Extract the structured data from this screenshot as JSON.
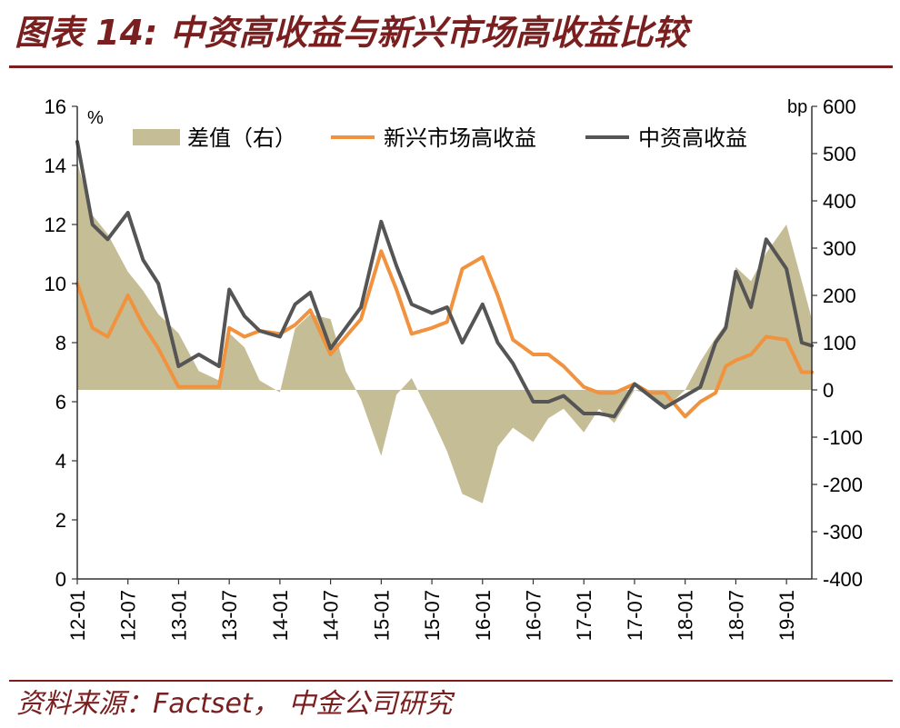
{
  "header": {
    "title": "图表 14:  中资高收益与新兴市场高收益比较"
  },
  "footer": {
    "source": "资料来源：Factset，  中金公司研究"
  },
  "colors": {
    "diff": "#c5bd96",
    "em": "#f0923e",
    "china": "#555555",
    "accent": "#7a1f1f"
  },
  "chart_data": {
    "type": "line",
    "x": [
      "12-01",
      "12-07",
      "13-01",
      "13-07",
      "14-01",
      "14-07",
      "15-01",
      "15-07",
      "16-01",
      "16-07",
      "17-01",
      "17-07",
      "18-01",
      "18-07",
      "19-01"
    ],
    "y_left": {
      "unit": "%",
      "ticks": [
        0,
        2,
        4,
        6,
        8,
        10,
        12,
        14,
        16
      ],
      "ylim": [
        0,
        16
      ]
    },
    "y_right": {
      "unit": "bp",
      "ticks": [
        -400,
        -300,
        -200,
        -100,
        0,
        100,
        200,
        300,
        400,
        500,
        600
      ],
      "ylim": [
        -400,
        600
      ]
    },
    "legend": [
      "差值（右）",
      "新兴市场高收益",
      "中资高收益"
    ],
    "legend_position": "top",
    "series": [
      {
        "name": "差值（右）",
        "type": "area",
        "axis": "right",
        "x": [
          0,
          0.3,
          0.6,
          1,
          1.3,
          1.6,
          2,
          2.4,
          2.8,
          3,
          3.3,
          3.6,
          4,
          4.3,
          4.6,
          5,
          5.3,
          5.6,
          6,
          6.3,
          6.6,
          7,
          7.3,
          7.6,
          8,
          8.3,
          8.6,
          9,
          9.3,
          9.6,
          10,
          10.3,
          10.6,
          11,
          11.3,
          11.6,
          12,
          12.3,
          12.6,
          12.8,
          13,
          13.3,
          13.6,
          14,
          14.3,
          14.5
        ],
        "values": [
          480,
          370,
          330,
          250,
          210,
          160,
          120,
          40,
          20,
          120,
          90,
          20,
          -5,
          130,
          160,
          150,
          40,
          -20,
          -140,
          -10,
          25,
          -60,
          -130,
          -220,
          -240,
          -120,
          -80,
          -110,
          -60,
          -40,
          -90,
          -40,
          -70,
          0,
          -10,
          -40,
          0,
          60,
          110,
          140,
          260,
          230,
          290,
          350,
          230,
          150
        ]
      },
      {
        "name": "新兴市场高收益",
        "type": "line",
        "axis": "left",
        "x": [
          0,
          0.3,
          0.6,
          1,
          1.3,
          1.6,
          2,
          2.4,
          2.8,
          3,
          3.3,
          3.6,
          4,
          4.3,
          4.6,
          5,
          5.3,
          5.6,
          6,
          6.3,
          6.6,
          7,
          7.3,
          7.6,
          8,
          8.3,
          8.6,
          9,
          9.3,
          9.6,
          10,
          10.3,
          10.6,
          11,
          11.3,
          11.6,
          12,
          12.3,
          12.6,
          12.8,
          13,
          13.3,
          13.6,
          14,
          14.3,
          14.5
        ],
        "values": [
          10.0,
          8.5,
          8.2,
          9.6,
          8.6,
          7.8,
          6.5,
          6.5,
          6.5,
          8.5,
          8.2,
          8.4,
          8.3,
          8.6,
          9.1,
          7.6,
          8.2,
          8.8,
          11.1,
          9.8,
          8.3,
          8.5,
          8.7,
          10.5,
          10.9,
          9.6,
          8.1,
          7.6,
          7.6,
          7.2,
          6.5,
          6.3,
          6.3,
          6.6,
          6.3,
          6.3,
          5.5,
          6.0,
          6.3,
          7.2,
          7.4,
          7.6,
          8.2,
          8.1,
          7.0,
          7.0
        ]
      },
      {
        "name": "中资高收益",
        "type": "line",
        "axis": "left",
        "x": [
          0,
          0.3,
          0.6,
          1,
          1.3,
          1.6,
          2,
          2.4,
          2.8,
          3,
          3.3,
          3.6,
          4,
          4.3,
          4.6,
          5,
          5.3,
          5.6,
          6,
          6.3,
          6.6,
          7,
          7.3,
          7.6,
          8,
          8.3,
          8.6,
          9,
          9.3,
          9.6,
          10,
          10.3,
          10.6,
          11,
          11.3,
          11.6,
          12,
          12.3,
          12.6,
          12.8,
          13,
          13.3,
          13.6,
          14,
          14.3,
          14.5
        ],
        "values": [
          14.8,
          12.0,
          11.5,
          12.4,
          10.8,
          10.0,
          7.2,
          7.6,
          7.2,
          9.8,
          8.9,
          8.4,
          8.2,
          9.3,
          9.7,
          7.8,
          8.5,
          9.2,
          12.1,
          10.6,
          9.3,
          9.0,
          9.2,
          8.0,
          9.3,
          8.0,
          7.3,
          6.0,
          6.0,
          6.2,
          5.6,
          5.6,
          5.5,
          6.6,
          6.2,
          5.8,
          6.2,
          6.5,
          8.0,
          8.5,
          10.4,
          9.2,
          11.5,
          10.5,
          8.0,
          7.9
        ]
      }
    ]
  }
}
